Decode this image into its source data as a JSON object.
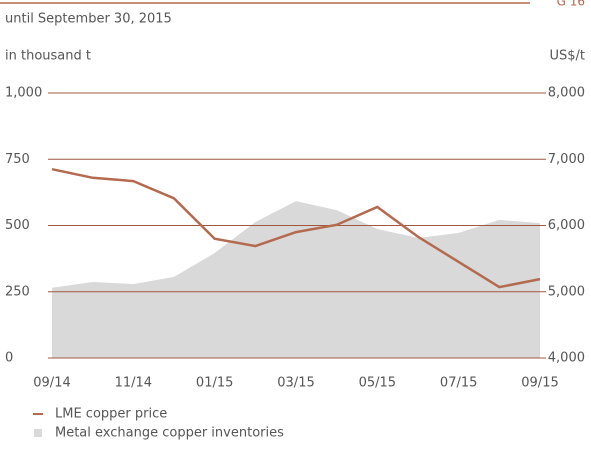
{
  "chart_data": {
    "type": "line",
    "chart_id": "G 16",
    "subtitle": "until September 30, 2015",
    "y_label": "in thousand t",
    "y2_label": "US$/t",
    "categories": [
      "09/14",
      null,
      "11/14",
      null,
      "01/15",
      null,
      "03/15",
      null,
      "05/15",
      null,
      "07/15",
      null,
      "09/15"
    ],
    "series": [
      {
        "name": "LME copper price",
        "color": "#b36a4f",
        "axis": "y2",
        "kind": "line",
        "values": [
          6850,
          6720,
          6670,
          6410,
          5800,
          5690,
          5900,
          6010,
          6280,
          5830,
          5450,
          5070,
          5190
        ]
      },
      {
        "name": "Metal exchange copper inventories",
        "color": "#d9d9da",
        "axis": "y",
        "kind": "area",
        "values": [
          265,
          287,
          279,
          306,
          396,
          513,
          592,
          558,
          487,
          453,
          472,
          521,
          509
        ]
      }
    ],
    "ylim": [
      0,
      1000
    ],
    "yticks": [
      0,
      250,
      500,
      750,
      {
        "value": 1000,
        "label": "1,000"
      }
    ],
    "y2lim": [
      4000,
      8000
    ],
    "y2ticks": [
      {
        "value": 4000,
        "label": "4,000"
      },
      {
        "value": 5000,
        "label": "5,000"
      },
      {
        "value": 6000,
        "label": "6,000"
      },
      {
        "value": 7000,
        "label": "7,000"
      },
      {
        "value": 8000,
        "label": "8,000"
      }
    ],
    "grid": true,
    "grid_color": "#a0573f"
  }
}
